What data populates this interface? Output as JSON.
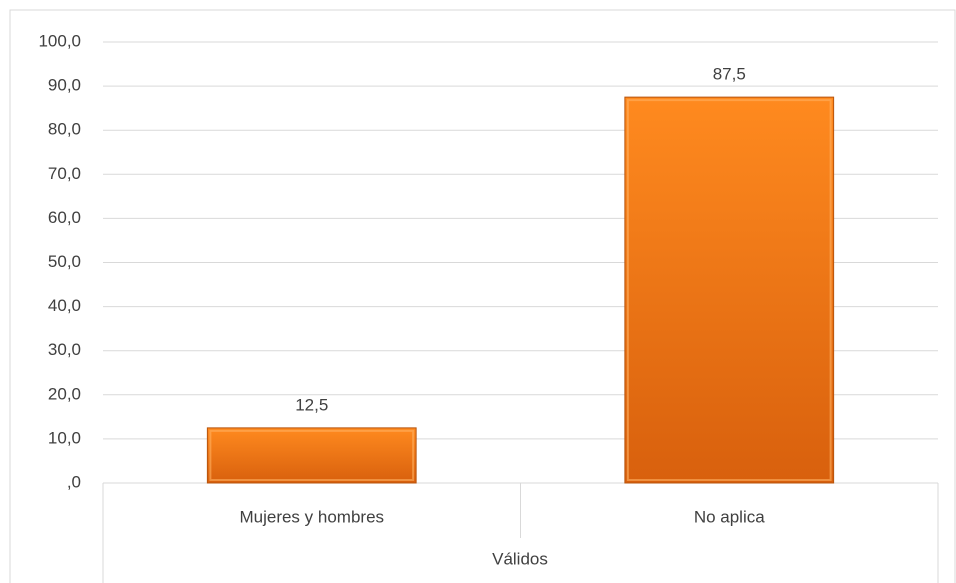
{
  "chart_data": {
    "type": "bar",
    "categories": [
      "Mujeres y hombres",
      "No aplica"
    ],
    "group_label": "Válidos",
    "values": [
      12.5,
      87.5
    ],
    "value_labels": [
      "12,5",
      "87,5"
    ],
    "color": "#f07a1a",
    "ylim": [
      0,
      100
    ],
    "yticks": [
      {
        "value": 0,
        "label": ",0"
      },
      {
        "value": 10,
        "label": "10,0"
      },
      {
        "value": 20,
        "label": "20,0"
      },
      {
        "value": 30,
        "label": "30,0"
      },
      {
        "value": 40,
        "label": "40,0"
      },
      {
        "value": 50,
        "label": "50,0"
      },
      {
        "value": 60,
        "label": "60,0"
      },
      {
        "value": 70,
        "label": "70,0"
      },
      {
        "value": 80,
        "label": "80,0"
      },
      {
        "value": 90,
        "label": "90,0"
      },
      {
        "value": 100,
        "label": "100,0"
      }
    ],
    "grid": true
  }
}
